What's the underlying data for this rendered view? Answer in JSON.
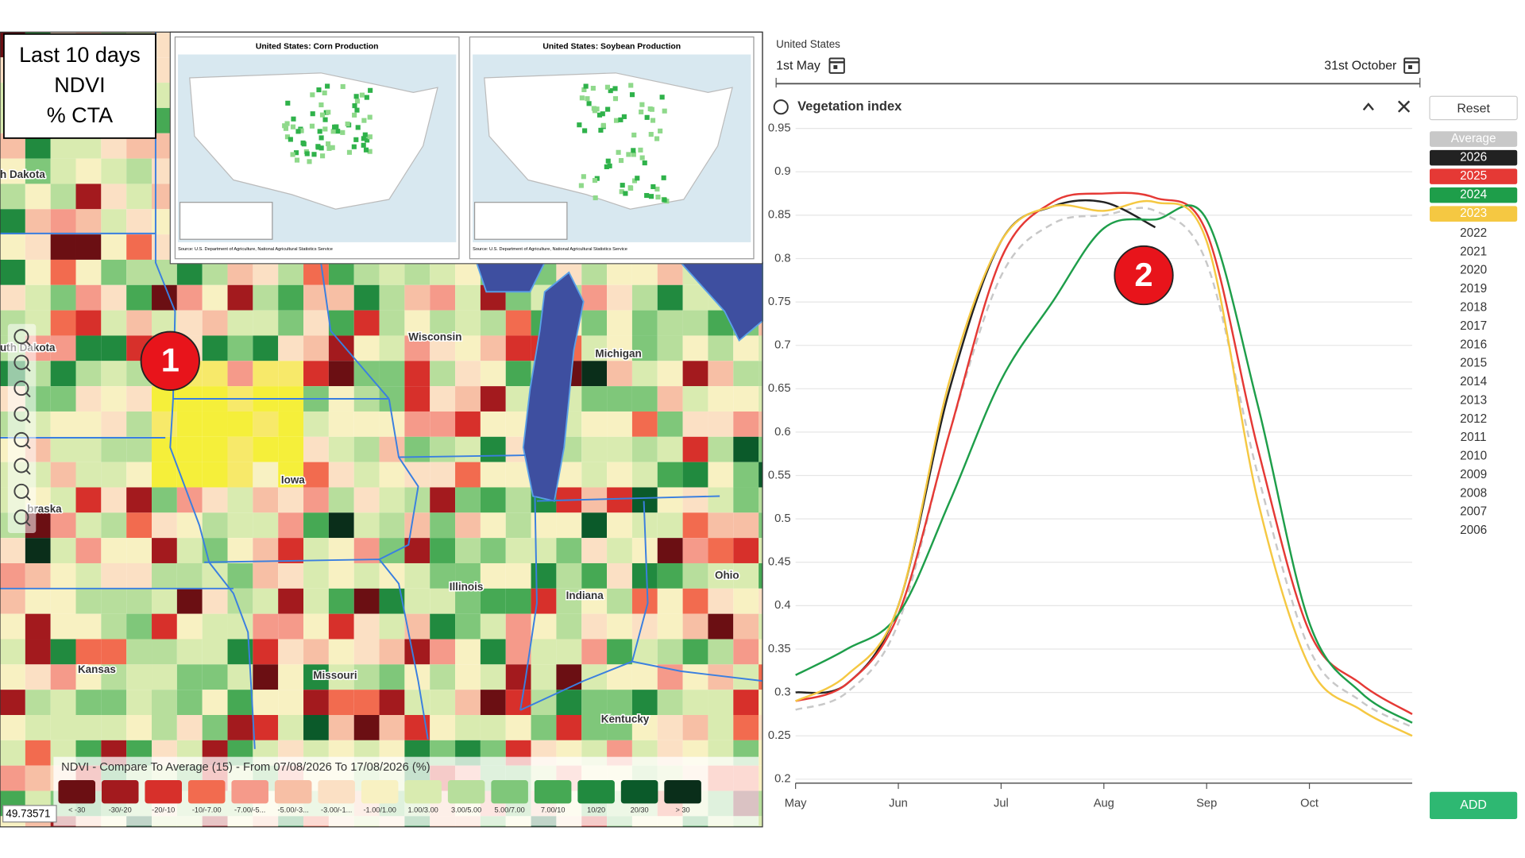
{
  "annotation": {
    "lines": [
      "Last 10 days",
      "NDVI",
      "% CTA"
    ]
  },
  "markers": [
    "1",
    "2"
  ],
  "insets": [
    {
      "title": "United States: Corn Production",
      "source": "Source: U.S. Department of Agriculture, National Agricultural Statistics Service"
    },
    {
      "title": "United States: Soybean Production",
      "source": "Source: U.S. Department of Agriculture, National Agricultural Statistics Service"
    }
  ],
  "map": {
    "labels": [
      "h Dakota",
      "uth Dakota",
      "Wisconsin",
      "Michigan",
      "Iowa",
      "braska",
      "Illinois",
      "Indiana",
      "Ohio",
      "Kansas",
      "Missouri",
      "Kentucky"
    ],
    "coordinate": "49.73571",
    "legend": {
      "title": "NDVI - Compare To Average (15) - From 07/08/2026 To 17/08/2026 (%)",
      "bins": [
        {
          "label": "< -30",
          "color": "#6b0f13"
        },
        {
          "label": "-30/-20",
          "color": "#a31a1e"
        },
        {
          "label": "-20/-10",
          "color": "#d7302b"
        },
        {
          "label": "-10/-7.00",
          "color": "#f26b4f"
        },
        {
          "label": "-7.00/-5...",
          "color": "#f59a8a"
        },
        {
          "label": "-5.00/-3...",
          "color": "#f7bfa5"
        },
        {
          "label": "-3.00/-1...",
          "color": "#fbe0c4"
        },
        {
          "label": "-1.00/1.00",
          "color": "#f8f1c2"
        },
        {
          "label": "1.00/3.00",
          "color": "#d9ebb0"
        },
        {
          "label": "3.00/5.00",
          "color": "#b7de9c"
        },
        {
          "label": "5.00/7.00",
          "color": "#7fc77a"
        },
        {
          "label": "7.00/10",
          "color": "#46a954"
        },
        {
          "label": "10/20",
          "color": "#218a3f"
        },
        {
          "label": "20/30",
          "color": "#0b5a2a"
        },
        {
          "label": "> 30",
          "color": "#0a2e1a"
        }
      ]
    }
  },
  "header": {
    "country": "United States",
    "start": "1st May",
    "end": "31st October",
    "panel_title": "Vegetation index",
    "reset": "Reset",
    "add": "ADD"
  },
  "chart_data": {
    "type": "line",
    "categories": [
      "May",
      null,
      "Jun",
      null,
      "Jul",
      null,
      "Aug",
      null,
      "Sep",
      null,
      "Oct",
      null,
      null
    ],
    "ylim": [
      0.2,
      0.95
    ],
    "yticks": [
      0.2,
      0.25,
      0.3,
      0.35,
      0.4,
      0.45,
      0.5,
      0.55,
      0.6,
      0.65,
      0.7,
      0.75,
      0.8,
      0.85,
      0.9,
      0.95
    ],
    "grid": true,
    "series": [
      {
        "name": "Average",
        "color": "#c8c8c8",
        "dashed": true,
        "values": [
          0.28,
          0.3,
          0.38,
          0.6,
          0.78,
          0.84,
          0.85,
          0.855,
          0.795,
          0.55,
          0.35,
          0.29,
          0.26
        ]
      },
      {
        "name": "2026",
        "color": "#222222",
        "values": [
          0.3,
          0.31,
          0.4,
          0.65,
          0.82,
          0.86,
          0.865,
          0.836,
          null,
          null,
          null,
          null,
          null
        ]
      },
      {
        "name": "2025",
        "color": "#e53935",
        "values": [
          0.29,
          0.31,
          0.39,
          0.6,
          0.8,
          0.865,
          0.875,
          0.87,
          0.83,
          0.58,
          0.37,
          0.31,
          0.275
        ]
      },
      {
        "name": "2024",
        "color": "#1e9e4a",
        "values": [
          0.32,
          0.35,
          0.39,
          0.52,
          0.66,
          0.75,
          0.835,
          0.845,
          0.845,
          0.63,
          0.38,
          0.3,
          0.265
        ]
      },
      {
        "name": "2023",
        "color": "#f5c842",
        "values": [
          0.29,
          0.32,
          0.4,
          0.66,
          0.82,
          0.86,
          0.855,
          0.865,
          0.82,
          0.52,
          0.33,
          0.28,
          0.25
        ]
      }
    ],
    "inactive_series": [
      "2022",
      "2021",
      "2020",
      "2019",
      "2018",
      "2017",
      "2016",
      "2015",
      "2014",
      "2013",
      "2012",
      "2011",
      "2010",
      "2009",
      "2008",
      "2007",
      "2006"
    ]
  }
}
